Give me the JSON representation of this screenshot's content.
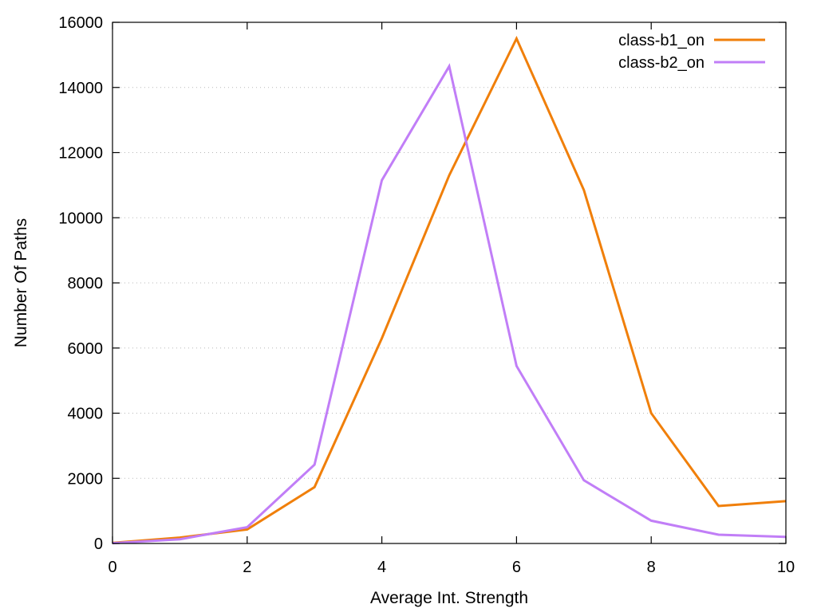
{
  "chart_data": {
    "type": "line",
    "title": "",
    "xlabel": "Average Int. Strength",
    "ylabel": "Number Of Paths",
    "xlim": [
      0,
      10
    ],
    "ylim": [
      0,
      16000
    ],
    "x_ticks": [
      0,
      2,
      4,
      6,
      8,
      10
    ],
    "y_ticks": [
      0,
      2000,
      4000,
      6000,
      8000,
      10000,
      12000,
      14000,
      16000
    ],
    "grid": "horizontal dotted",
    "legend_position": "top-right",
    "x": [
      0,
      1,
      2,
      3,
      4,
      5,
      6,
      7,
      8,
      9,
      10
    ],
    "series": [
      {
        "name": "class-b1_on",
        "color": "#f07f0a",
        "values": [
          20,
          180,
          430,
          1730,
          6300,
          11300,
          15500,
          10850,
          4000,
          1150,
          1300
        ]
      },
      {
        "name": "class-b2_on",
        "color": "#c17ef7",
        "values": [
          10,
          130,
          500,
          2420,
          11150,
          14650,
          5450,
          1940,
          700,
          270,
          200
        ]
      }
    ]
  }
}
